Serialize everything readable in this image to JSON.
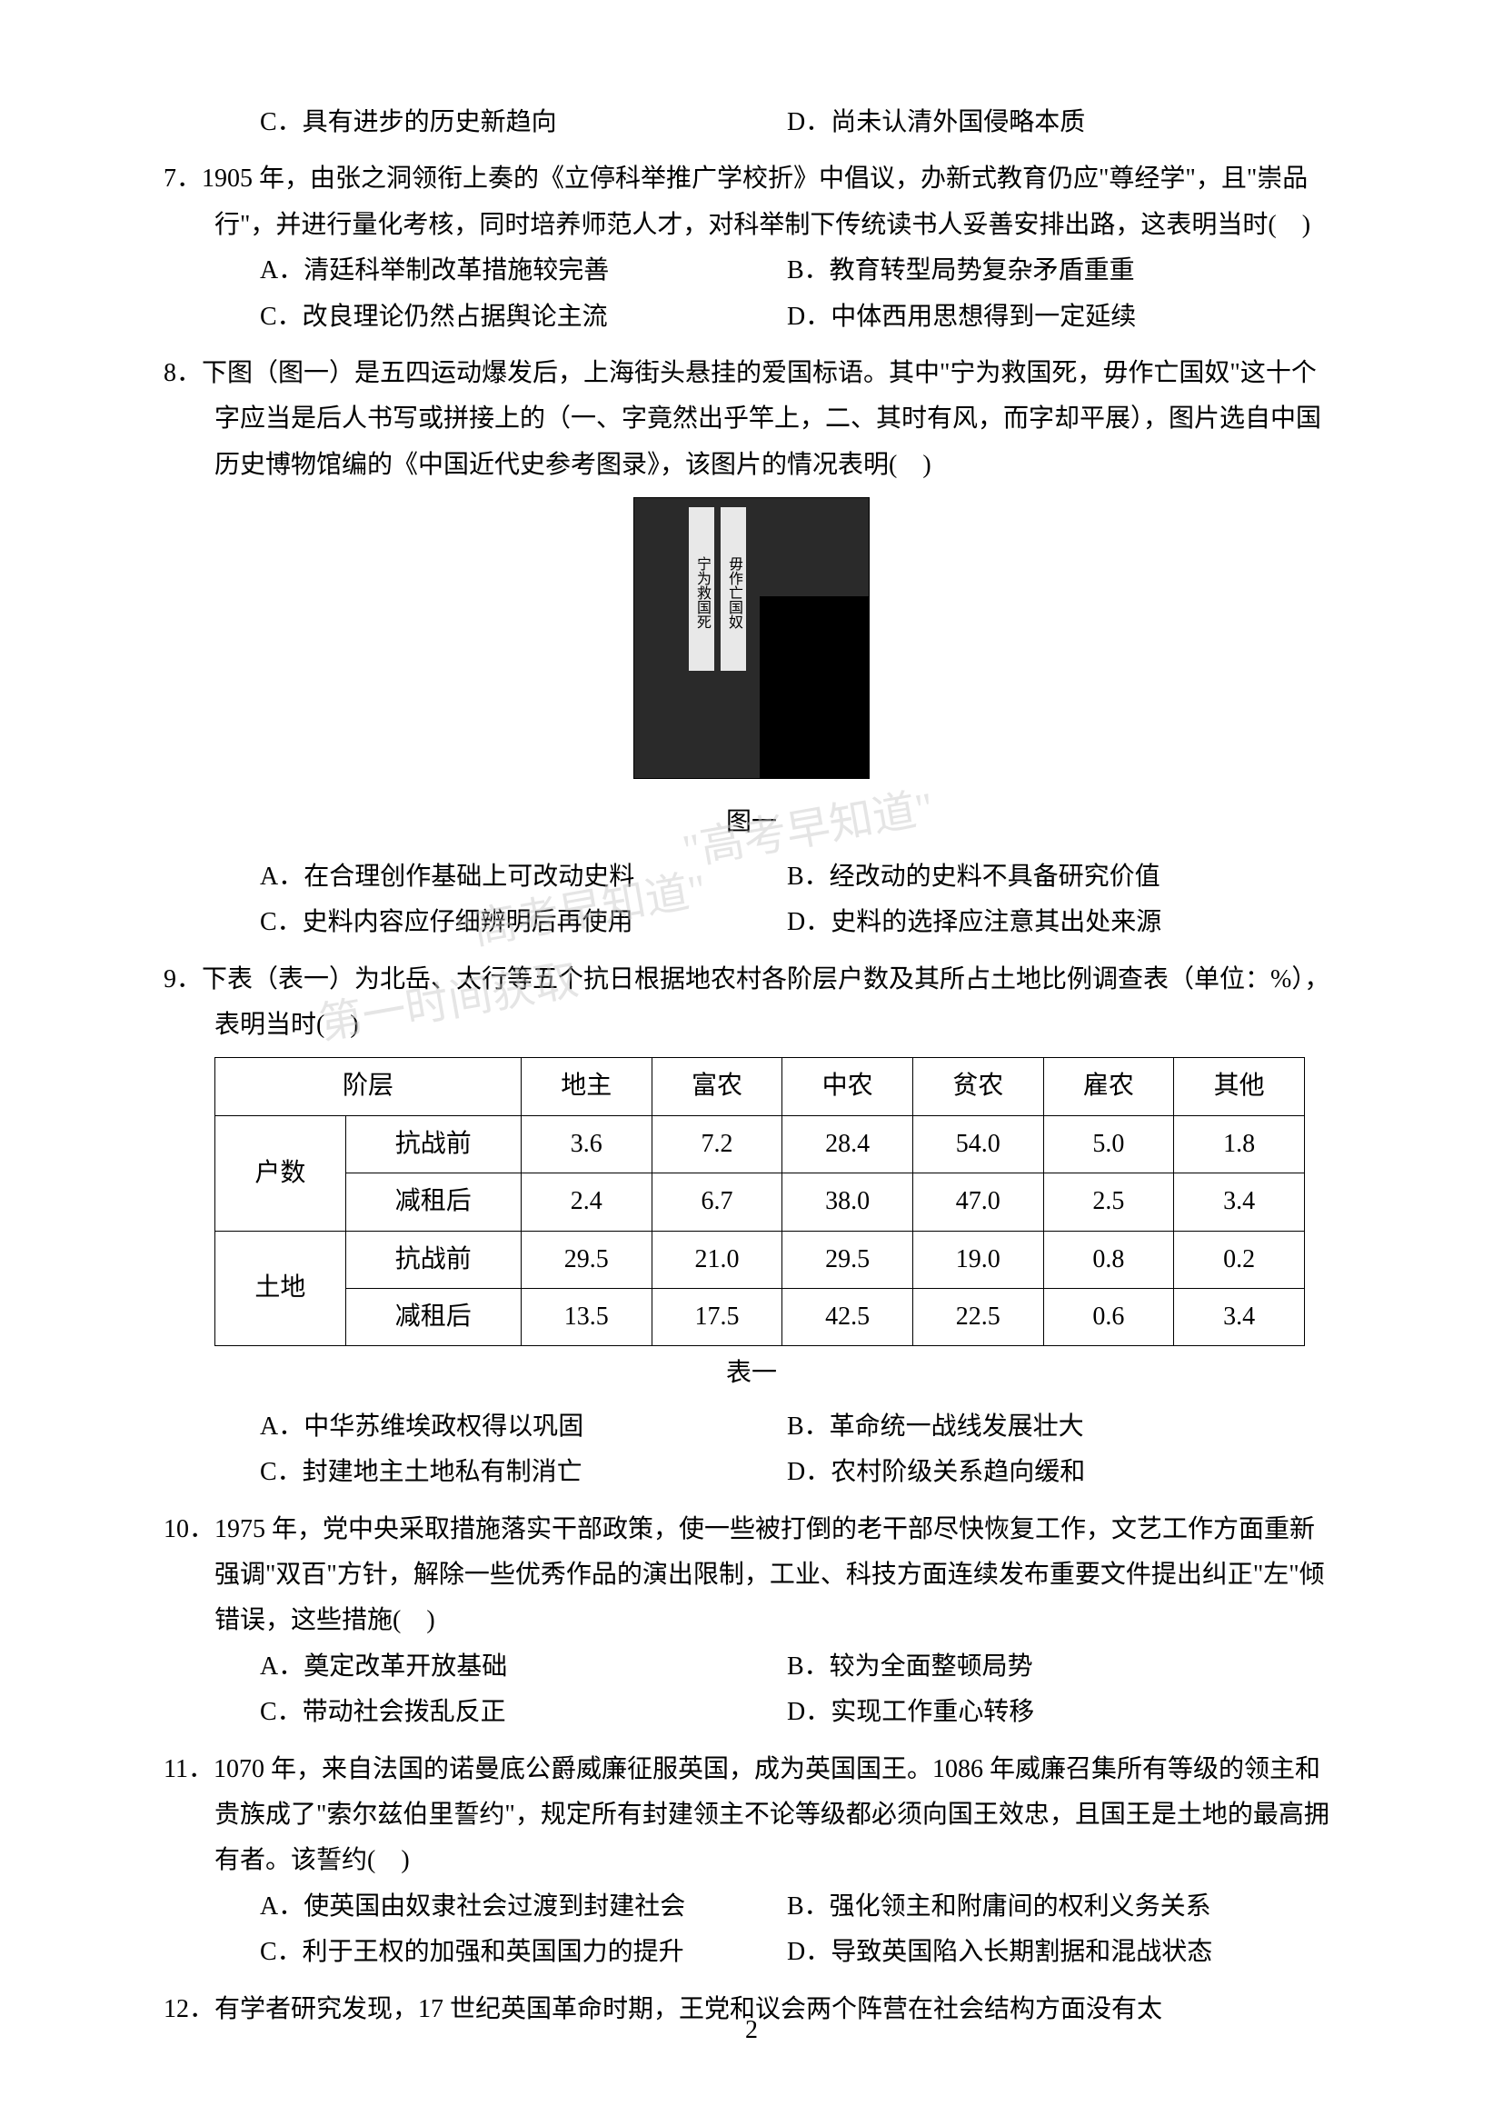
{
  "watermarks": {
    "wm1": "\"高考早知道\"",
    "wm2": "\"高考早知道\"",
    "wm3": "第一时间获取"
  },
  "q6_partial": {
    "optC": "C．具有进步的历史新趋向",
    "optD": "D．尚未认清外国侵略本质"
  },
  "q7": {
    "num": "7．",
    "text": "1905 年，由张之洞领衔上奏的《立停科举推广学校折》中倡议，办新式教育仍应\"尊经学\"，且\"崇品行\"，并进行量化考核，同时培养师范人才，对科举制下传统读书人妥善安排出路，这表明当时(　)",
    "optA": "A．清廷科举制改革措施较完善",
    "optB": "B．教育转型局势复杂矛盾重重",
    "optC": "C．改良理论仍然占据舆论主流",
    "optD": "D．中体西用思想得到一定延续"
  },
  "q8": {
    "num": "8．",
    "text": "下图（图一）是五四运动爆发后，上海街头悬挂的爱国标语。其中\"宁为救国死，毋作亡国奴\"这十个字应当是后人书写或拼接上的（一、字竟然出乎竿上，二、其时有风，而字却平展），图片选自中国历史博物馆编的《中国近代史参考图录》，该图片的情况表明(　)",
    "figure_caption": "图一",
    "banner1": "宁为救国死",
    "banner2": "毋作亡国奴",
    "optA": "A．在合理创作基础上可改动史料",
    "optB": "B．经改动的史料不具备研究价值",
    "optC": "C．史料内容应仔细辨明后再使用",
    "optD": "D．史料的选择应注意其出处来源"
  },
  "q9": {
    "num": "9．",
    "text": "下表（表一）为北岳、太行等五个抗日根据地农村各阶层户数及其所占土地比例调查表（单位：%），表明当时(　)",
    "table": {
      "headers": [
        "阶层",
        "",
        "地主",
        "富农",
        "中农",
        "贫农",
        "雇农",
        "其他"
      ],
      "rows": [
        [
          "户数",
          "抗战前",
          "3.6",
          "7.2",
          "28.4",
          "54.0",
          "5.0",
          "1.8"
        ],
        [
          "",
          "减租后",
          "2.4",
          "6.7",
          "38.0",
          "47.0",
          "2.5",
          "3.4"
        ],
        [
          "土地",
          "抗战前",
          "29.5",
          "21.0",
          "29.5",
          "19.0",
          "0.8",
          "0.2"
        ],
        [
          "",
          "减租后",
          "13.5",
          "17.5",
          "42.5",
          "22.5",
          "0.6",
          "3.4"
        ]
      ],
      "caption": "表一",
      "col_widths": [
        "120",
        "130",
        "150",
        "150",
        "150",
        "150",
        "150",
        "150"
      ]
    },
    "optA": "A．中华苏维埃政权得以巩固",
    "optB": "B．革命统一战线发展壮大",
    "optC": "C．封建地主土地私有制消亡",
    "optD": "D．农村阶级关系趋向缓和"
  },
  "q10": {
    "num": "10．",
    "text": "1975 年，党中央采取措施落实干部政策，使一些被打倒的老干部尽快恢复工作，文艺工作方面重新强调\"双百\"方针，解除一些优秀作品的演出限制，工业、科技方面连续发布重要文件提出纠正\"左\"倾错误，这些措施(　)",
    "optA": "A．奠定改革开放基础",
    "optB": "B．较为全面整顿局势",
    "optC": "C．带动社会拨乱反正",
    "optD": "D．实现工作重心转移"
  },
  "q11": {
    "num": "11．",
    "text": "1070 年，来自法国的诺曼底公爵威廉征服英国，成为英国国王。1086 年威廉召集所有等级的领主和贵族成了\"索尔兹伯里誓约\"，规定所有封建领主不论等级都必须向国王效忠，且国王是土地的最高拥有者。该誓约(　)",
    "optA": "A．使英国由奴隶社会过渡到封建社会",
    "optB": "B．强化领主和附庸间的权利义务关系",
    "optC": "C．利于王权的加强和英国国力的提升",
    "optD": "D．导致英国陷入长期割据和混战状态"
  },
  "q12": {
    "num": "12．",
    "text": "有学者研究发现，17 世纪英国革命时期，王党和议会两个阵营在社会结构方面没有太"
  },
  "page_number": "2",
  "styling": {
    "body_width": 1654,
    "body_height": 2339,
    "font_size": 28,
    "line_height": 1.8,
    "text_color": "#000000",
    "background_color": "#ffffff",
    "watermark_color": "#cccccc",
    "table_border": "#000000"
  }
}
